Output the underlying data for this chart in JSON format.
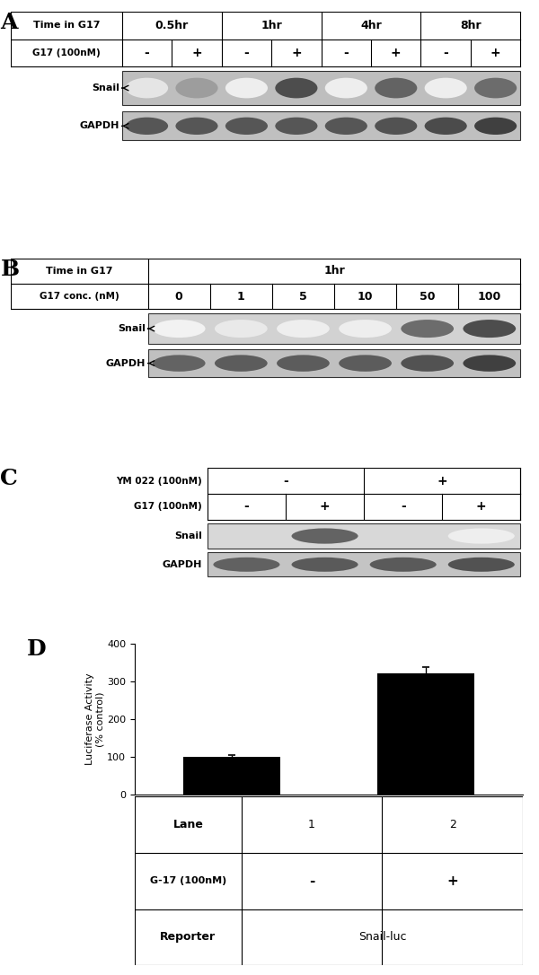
{
  "panel_A": {
    "label": "A",
    "time_labels": [
      "0.5hr",
      "1hr",
      "4hr",
      "8hr"
    ],
    "g17_signs": [
      "-",
      "+",
      "-",
      "+",
      "-",
      "+",
      "-",
      "+"
    ],
    "snail_bands": [
      0.12,
      0.45,
      0.08,
      0.82,
      0.08,
      0.72,
      0.08,
      0.68
    ],
    "gapdh_bands": [
      0.78,
      0.78,
      0.78,
      0.78,
      0.78,
      0.8,
      0.83,
      0.88
    ]
  },
  "panel_B": {
    "label": "B",
    "conc_labels": [
      "0",
      "1",
      "5",
      "10",
      "50",
      "100"
    ],
    "snail_bands": [
      0.06,
      0.1,
      0.08,
      0.08,
      0.68,
      0.82
    ],
    "gapdh_bands": [
      0.72,
      0.75,
      0.75,
      0.75,
      0.8,
      0.88
    ]
  },
  "panel_C": {
    "label": "C",
    "ym_signs": [
      "-",
      "+"
    ],
    "g17_signs": [
      "-",
      "+",
      "-",
      "+"
    ],
    "snail_bands": [
      0.04,
      0.72,
      0.04,
      0.08
    ],
    "gapdh_bands": [
      0.73,
      0.76,
      0.76,
      0.8
    ]
  },
  "panel_D": {
    "label": "D",
    "bar_values": [
      100,
      320
    ],
    "bar_errors": [
      5,
      18
    ],
    "bar_color": "#000000",
    "ylabel": "Luciferase Activity\n(% control)",
    "ylim": [
      0,
      400
    ],
    "yticks": [
      0,
      100,
      200,
      300,
      400
    ],
    "table_lane": [
      "Lane",
      "1",
      "2"
    ],
    "table_g17": [
      "G-17 (100nM)",
      "-",
      "+"
    ],
    "table_reporter": [
      "Reporter",
      "Snail-luc"
    ]
  }
}
